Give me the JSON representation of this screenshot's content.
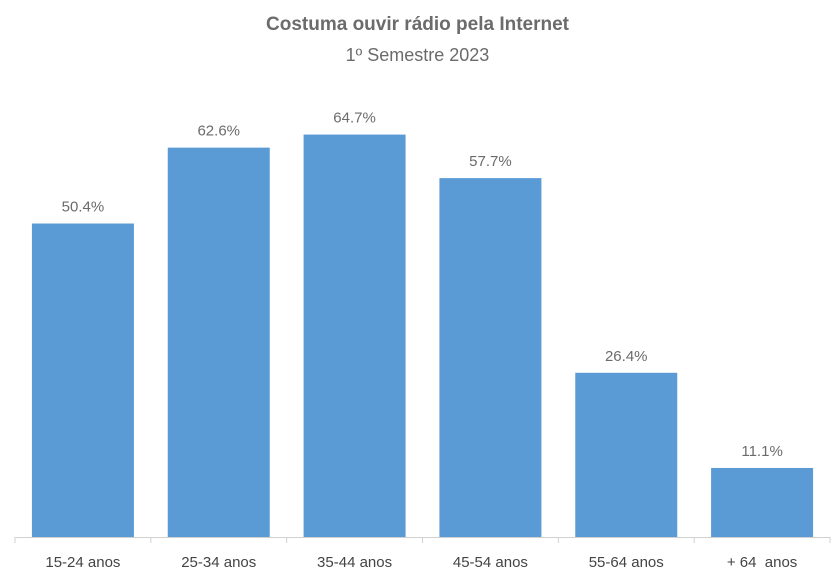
{
  "chart_data": {
    "type": "bar",
    "title": "Costuma ouvir rádio pela Internet",
    "subtitle": "1º Semestre 2023",
    "categories": [
      "15-24 anos",
      "25-34 anos",
      "35-44 anos",
      "45-54 anos",
      "55-64 anos",
      "+ 64  anos"
    ],
    "values": [
      50.4,
      62.6,
      64.7,
      57.7,
      26.4,
      11.1
    ],
    "data_labels": [
      "50.4%",
      "62.6%",
      "64.7%",
      "57.7%",
      "26.4%",
      "11.1%"
    ],
    "xlabel": "",
    "ylabel": "",
    "ylim": [
      0,
      74
    ],
    "grid": false,
    "legend": "none",
    "bar_color": "#5b9bd5"
  }
}
